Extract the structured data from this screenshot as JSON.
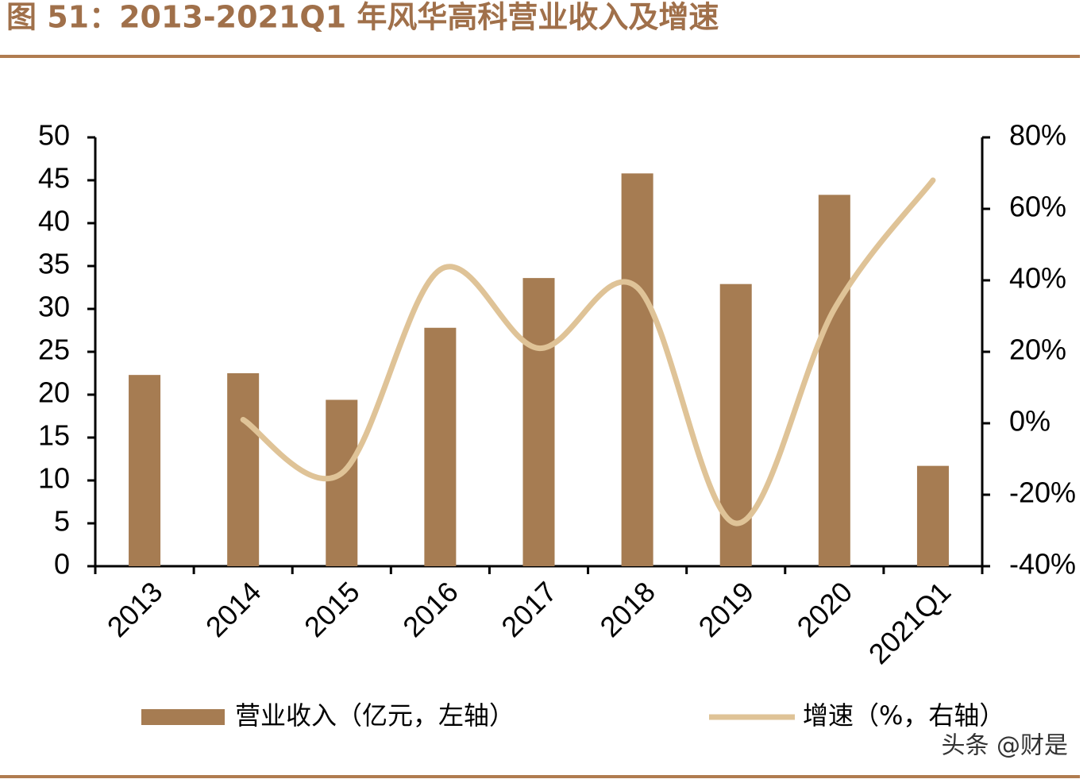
{
  "chart_data": {
    "type": "bar",
    "title": "图 51：2013-2021Q1 年风华高科营业收入及增速",
    "categories": [
      "2013",
      "2014",
      "2015",
      "2016",
      "2017",
      "2018",
      "2019",
      "2020",
      "2021Q1"
    ],
    "series": [
      {
        "name": "营业收入（亿元，左轴）",
        "type": "bar",
        "color": "#a67c52",
        "values": [
          22.3,
          22.5,
          19.4,
          27.8,
          33.6,
          45.8,
          32.9,
          43.3,
          11.7
        ]
      },
      {
        "name": "增速（%，右轴）",
        "type": "line",
        "axis": "y2",
        "color": "#dfc397",
        "values": [
          null,
          1,
          -14,
          43,
          21,
          38,
          -28,
          32,
          68
        ]
      }
    ],
    "ylim": [
      0,
      50
    ],
    "yticks": [
      0,
      5,
      10,
      15,
      20,
      25,
      30,
      35,
      40,
      45,
      50
    ],
    "y2lim": [
      -40,
      80
    ],
    "y2ticks": [
      {
        "value": -40,
        "label": "-40%"
      },
      {
        "value": -20,
        "label": "-20%"
      },
      {
        "value": 0,
        "label": "0%"
      },
      {
        "value": 20,
        "label": "20%"
      },
      {
        "value": 40,
        "label": "40%"
      },
      {
        "value": 60,
        "label": "60%"
      },
      {
        "value": 80,
        "label": "80%"
      }
    ],
    "grid": false,
    "watermark": "头条 @财是"
  }
}
